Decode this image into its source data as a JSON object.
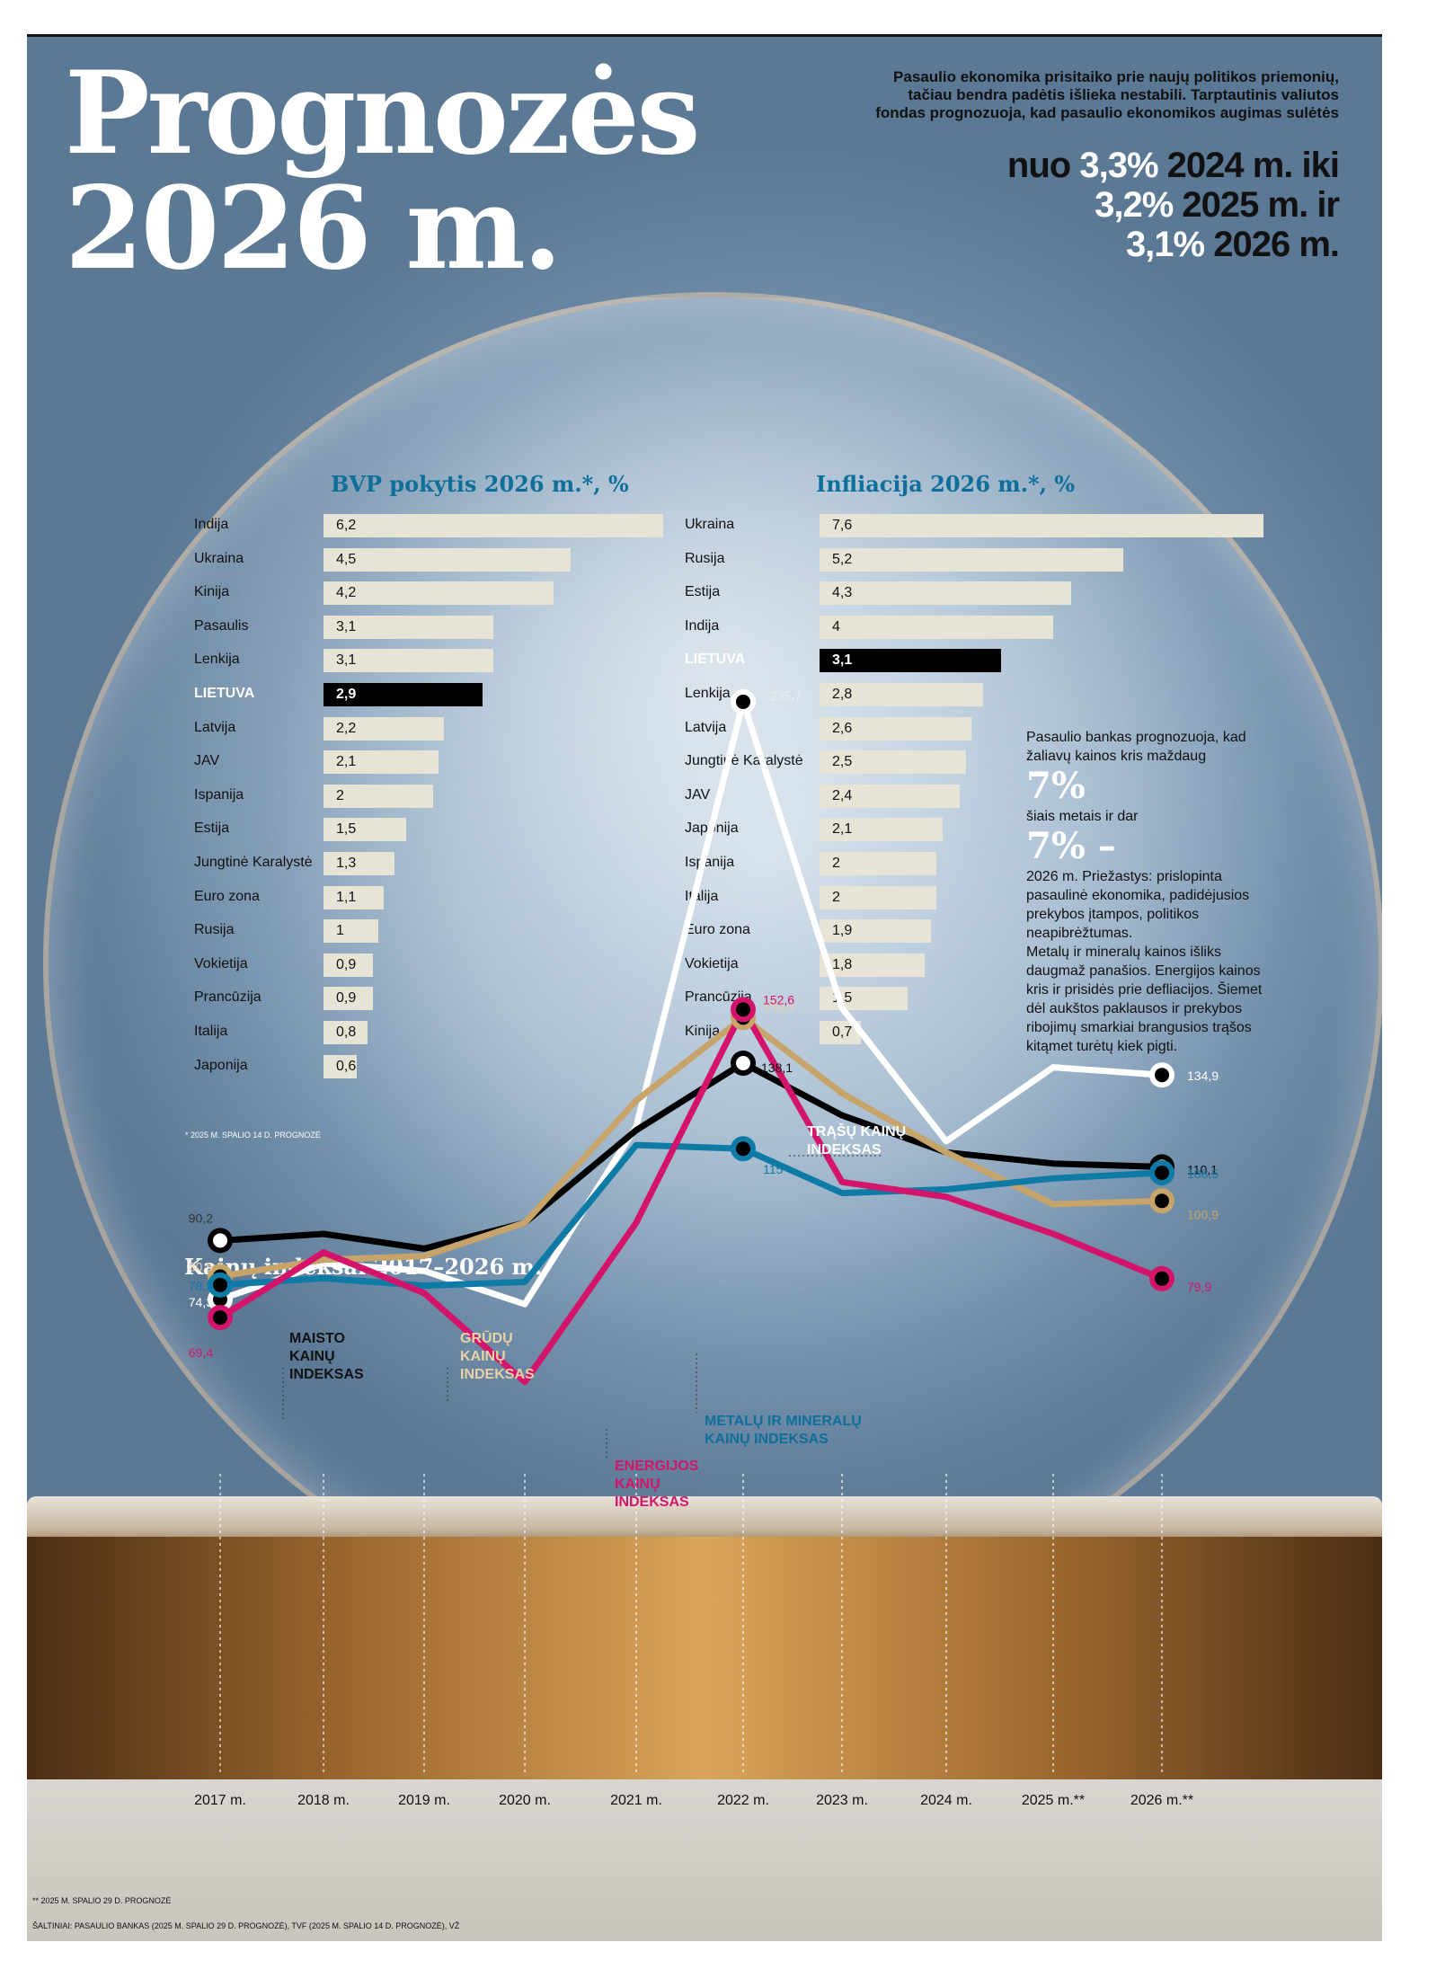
{
  "header": {
    "title_line1": "Prognozės",
    "title_line2": "2026 m.",
    "intro": "Pasaulio ekonomika prisitaiko prie naujų politikos priemonių, tačiau bendra padėtis išlieka nestabili. Tarptautinis valiutos fondas prognozuoja, kad pasaulio ekonomikos augimas sulėtės",
    "line1_pre": "nuo ",
    "line1_pct": "3,3%",
    "line1_post": " 2024 m. iki",
    "line2_pct": "3,2%",
    "line2_post": " 2025 m. ir",
    "line3_pct": "3,1%",
    "line3_post": " 2026 m."
  },
  "gdp": {
    "title": "BVP pokytis 2026 m.*, %",
    "note": "* 2025 M. SPALIO 14 D. PROGNOZĖ"
  },
  "inflation": {
    "title": "Infliacija 2026 m.*, %"
  },
  "world_bank": {
    "text1": "Pasaulio bankas prognozuoja, kad žaliavų kainos kris maždaug",
    "pct1": "7%",
    "text2": "šiais metais ir dar",
    "pct2": "7% –",
    "text3": "2026 m. Priežastys: prislopinta pasaulinė ekonomika, padidėjusios prekybos įtampos, politikos neapibrėžtumas.",
    "text4": "Metalų ir mineralų kainos išliks daugmaž panašios. Energijos kainos kris ir prisidės prie defliacijos. Šiemet dėl aukštos paklausos ir prekybos ribojimų smarkiai brangusios trąšos kitąmet turėtų kiek pigti."
  },
  "index_chart": {
    "title": "Kainų indeksai 2017–2026 m.",
    "label_food": "MAISTO KAINŲ INDEKSAS",
    "label_grain": "GRŪDŲ KAINŲ INDEKSAS",
    "label_fert": "TRĄŠŲ KAINŲ INDEKSAS",
    "label_metal": "METALŲ IR MINERALŲ KAINŲ INDEKSAS",
    "label_energy": "ENERGIJOS KAINŲ INDEKSAS",
    "note": "** 2025 M. SPALIO 29 D. PROGNOZĖ",
    "source": "ŠALTINIAI: PASAULIO BANKAS (2025 M. SPALIO 29 D. PROGNOZĖ), TVF (2025 M. SPALIO 14 D. PROGNOZĖ), VŽ"
  },
  "colors": {
    "fertilizer": "#ffffff",
    "food": "#000000",
    "grain": "#c7a46a",
    "metal": "#0e7aa6",
    "energy": "#d4146b",
    "bar": "#e7e4d6",
    "title_blue": "#0e6f9b"
  },
  "chart_data": [
    {
      "type": "bar",
      "title": "BVP pokytis 2026 m.*, %",
      "orientation": "horizontal",
      "categories": [
        "Indija",
        "Ukraina",
        "Kinija",
        "Pasaulis",
        "Lenkija",
        "LIETUVA",
        "Latvija",
        "JAV",
        "Ispanija",
        "Estija",
        "Jungtinė Karalystė",
        "Euro zona",
        "Rusija",
        "Vokietija",
        "Prancūzija",
        "Italija",
        "Japonija"
      ],
      "values": [
        6.2,
        4.5,
        4.2,
        3.1,
        3.1,
        2.9,
        2.2,
        2.1,
        2,
        1.5,
        1.3,
        1.1,
        1,
        0.9,
        0.9,
        0.8,
        0.6
      ],
      "value_labels": [
        "6,2",
        "4,5",
        "4,2",
        "3,1",
        "3,1",
        "2,9",
        "2,2",
        "2,1",
        "2",
        "1,5",
        "1,3",
        "1,1",
        "1",
        "0,9",
        "0,9",
        "0,8",
        "0,6"
      ],
      "highlight": "LIETUVA"
    },
    {
      "type": "bar",
      "title": "Infliacija 2026 m.*, %",
      "orientation": "horizontal",
      "categories": [
        "Ukraina",
        "Rusija",
        "Estija",
        "Indija",
        "LIETUVA",
        "Lenkija",
        "Latvija",
        "Jungtinė Karalystė",
        "JAV",
        "Japonija",
        "Ispanija",
        "Italija",
        "Euro zona",
        "Vokietija",
        "Prancūzija",
        "Kinija"
      ],
      "values": [
        7.6,
        5.2,
        4.3,
        4,
        3.1,
        2.8,
        2.6,
        2.5,
        2.4,
        2.1,
        2,
        2,
        1.9,
        1.8,
        1.5,
        0.7
      ],
      "value_labels": [
        "7,6",
        "5,2",
        "4,3",
        "4",
        "3,1",
        "2,8",
        "2,6",
        "2,5",
        "2,4",
        "2,1",
        "2",
        "2",
        "1,9",
        "1,8",
        "1,5",
        "0,7"
      ],
      "highlight": "LIETUVA"
    },
    {
      "type": "line",
      "title": "Kainų indeksai 2017–2026 m.",
      "x": [
        "2017 m.",
        "2018 m.",
        "2019 m.",
        "2020 m.",
        "2021 m.",
        "2022 m.",
        "2023 m.",
        "2024 m.",
        "2025 m.**",
        "2026 m.**"
      ],
      "series": [
        {
          "name": "TRĄŠŲ KAINŲ INDEKSAS",
          "color": "#ffffff",
          "values": [
            74.3,
            84,
            82,
            73,
            121,
            235.7,
            153,
            117,
            137,
            134.9
          ],
          "labels": {
            "0": "74,3",
            "5": "235,7",
            "9": "134,9"
          }
        },
        {
          "name": "MAISTO KAINŲ INDEKSAS",
          "color": "#000000",
          "values": [
            90.2,
            92,
            88,
            95,
            120,
            138.1,
            124,
            114,
            111,
            110.1
          ],
          "labels": {
            "0": "90,2",
            "5": "138,1",
            "9": "110,1"
          }
        },
        {
          "name": "GRŪDŲ KAINŲ INDEKSAS",
          "color": "#c7a46a",
          "values": [
            80.5,
            85,
            86,
            95,
            128,
            150.4,
            130,
            114,
            100,
            100.9
          ],
          "labels": {
            "0": "80,5",
            "5": "150,4",
            "9": "100,9"
          }
        },
        {
          "name": "METALŲ IR MINERALŲ KAINŲ INDEKSAS",
          "color": "#0e7aa6",
          "values": [
            78.2,
            80,
            78,
            79,
            116,
            115,
            103,
            104,
            107,
            108.5
          ],
          "labels": {
            "0": "78,2",
            "5": "115",
            "9": "108,5"
          }
        },
        {
          "name": "ENERGIJOS KAINŲ INDEKSAS",
          "color": "#d4146b",
          "values": [
            69.4,
            87,
            76,
            52,
            95,
            152.6,
            106,
            102,
            92,
            79.9
          ],
          "labels": {
            "0": "69,4",
            "5": "152,6",
            "9": "79,9"
          }
        }
      ]
    }
  ]
}
